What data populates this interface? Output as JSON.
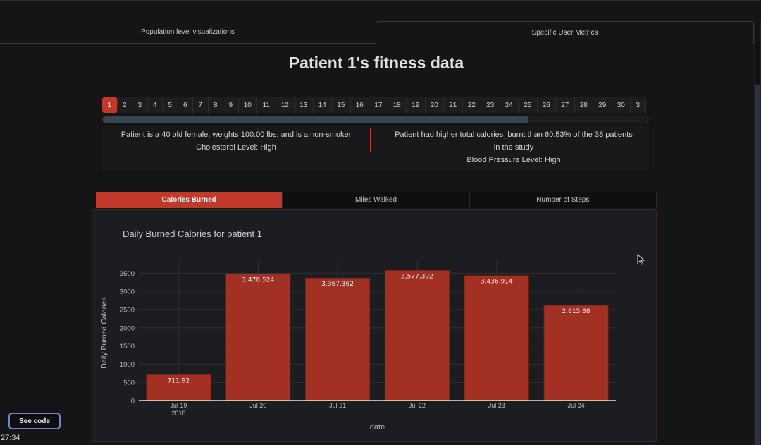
{
  "tabs": [
    {
      "label": "Population level visualizations",
      "active": false
    },
    {
      "label": "Specific User Metrics",
      "active": true
    }
  ],
  "page_title": "Patient 1's fitness data",
  "pager": {
    "pages": [
      "1",
      "2",
      "3",
      "4",
      "5",
      "6",
      "7",
      "8",
      "9",
      "10",
      "11",
      "12",
      "13",
      "14",
      "15",
      "16",
      "17",
      "18",
      "19",
      "20",
      "21",
      "22",
      "23",
      "24",
      "25",
      "26",
      "27",
      "28",
      "29",
      "30",
      "3"
    ],
    "active": "1"
  },
  "slider": {
    "value_fraction": 0.78
  },
  "info": {
    "left_line1": "Patient is a 40 old female, weights 100.00 lbs, and is a non-smoker",
    "left_line2": "Cholesterol Level: High",
    "right_line1": "Patient had higher total calories_burnt than 60.53% of the 38 patients",
    "right_line2": "in the study",
    "right_line3": "Blood Pressure Level: High"
  },
  "subtabs": [
    {
      "label": "Calories Burned",
      "active": true
    },
    {
      "label": "Miles Walked",
      "active": false
    },
    {
      "label": "Number of Steps",
      "active": false
    }
  ],
  "colors": {
    "accent": "#c0392b",
    "bar": "#a23124"
  },
  "chart_data": {
    "type": "bar",
    "title": "Daily Burned Calories for patient 1",
    "xlabel": "date",
    "ylabel": "Daily Burned Calories",
    "categories": [
      "Jul 19",
      "Jul 20",
      "Jul 21",
      "Jul 22",
      "Jul 23",
      "Jul 24"
    ],
    "category_sublabels": [
      "2018",
      "",
      "",
      "",
      "",
      ""
    ],
    "values": [
      711.92,
      3478.524,
      3367.362,
      3577.392,
      3436.914,
      2615.88
    ],
    "value_labels": [
      "711.92",
      "3,478.524",
      "3,367.362",
      "3,577.392",
      "3,436.914",
      "2,615.88"
    ],
    "yticks": [
      0,
      500,
      1000,
      1500,
      2000,
      2500,
      3000,
      3500
    ],
    "ylim": [
      0,
      3720
    ],
    "grid": true
  },
  "see_code_label": "See code",
  "timecode": "27:34"
}
